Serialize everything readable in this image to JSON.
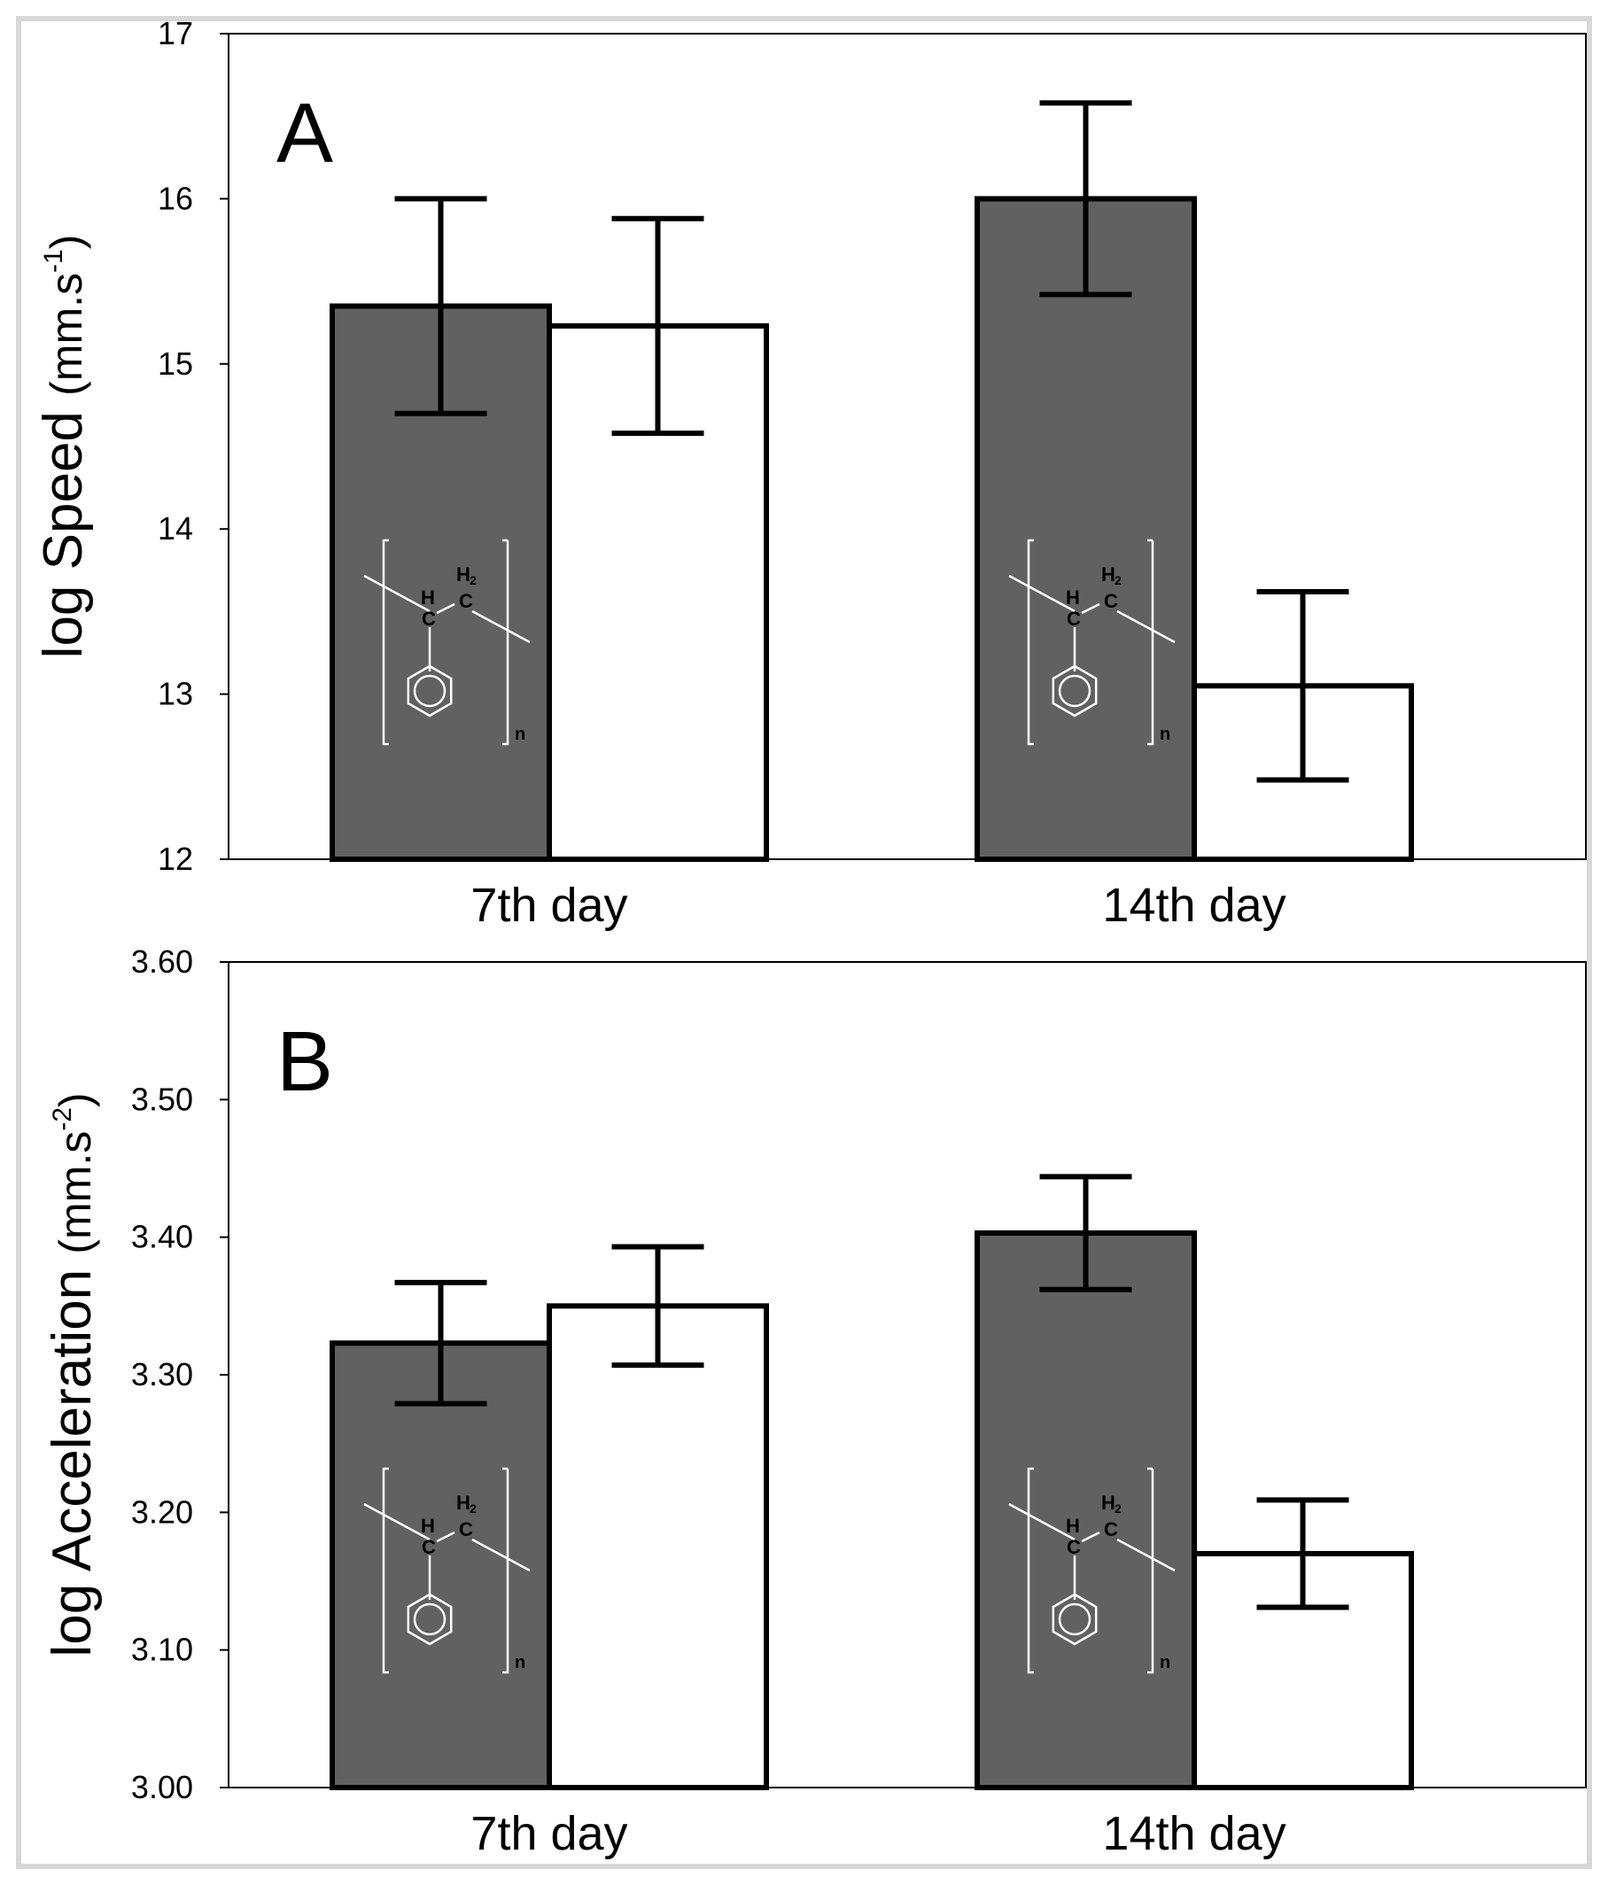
{
  "colors": {
    "treated_fill": "#616161",
    "control_fill": "#ffffff",
    "stroke": "#000000",
    "frame": "#d8d8d8",
    "structure": "#ffffff"
  },
  "icons": {
    "polymer": "polystyrene-structure-icon"
  },
  "chart_data": [
    {
      "type": "bar",
      "panel_label": "A",
      "ylabel": "log Speed",
      "ylabel_unit": "(mm.s",
      "ylabel_exp": "-1",
      "ylabel_close": ")",
      "ylim": [
        12,
        17
      ],
      "yticks": [
        "12",
        "13",
        "14",
        "15",
        "16",
        "17"
      ],
      "ytick_values": [
        12,
        13,
        14,
        15,
        16,
        17
      ],
      "categories": [
        "7th day",
        "14th day"
      ],
      "series": [
        {
          "values": [
            15.35,
            16.0
          ],
          "errors": [
            0.65,
            0.58
          ],
          "fill": "treated",
          "structure_overlay": true
        },
        {
          "values": [
            15.23,
            13.05
          ],
          "errors": [
            0.65,
            0.57
          ],
          "fill": "control",
          "structure_overlay": false
        }
      ],
      "grid": false,
      "legend": "none"
    },
    {
      "type": "bar",
      "panel_label": "B",
      "ylabel": "log Acceleration",
      "ylabel_unit": "(mm.s",
      "ylabel_exp": "-2",
      "ylabel_close": ")",
      "ylim": [
        3.0,
        3.6
      ],
      "yticks": [
        "3.00",
        "3.10",
        "3.20",
        "3.30",
        "3.40",
        "3.50",
        "3.60"
      ],
      "ytick_values": [
        3.0,
        3.1,
        3.2,
        3.3,
        3.4,
        3.5,
        3.6
      ],
      "categories": [
        "7th day",
        "14th day"
      ],
      "series": [
        {
          "values": [
            3.323,
            3.403
          ],
          "errors": [
            0.044,
            0.041
          ],
          "fill": "treated",
          "structure_overlay": true
        },
        {
          "values": [
            3.35,
            3.17
          ],
          "errors": [
            0.043,
            0.039
          ],
          "fill": "control",
          "structure_overlay": false
        }
      ],
      "grid": false,
      "legend": "none"
    }
  ]
}
